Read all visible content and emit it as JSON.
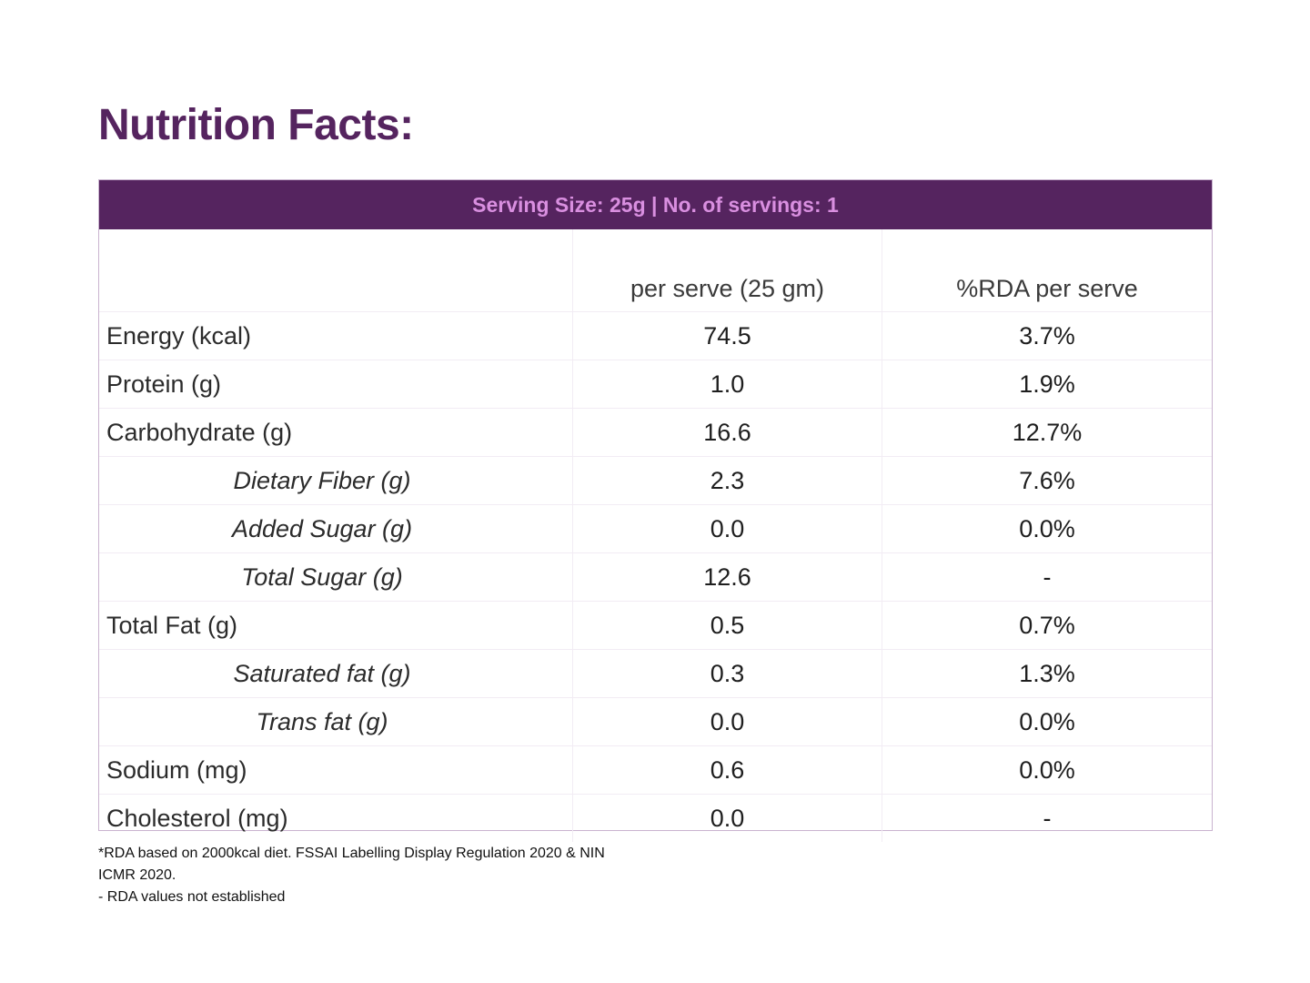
{
  "title": "Nutrition Facts:",
  "serving": "Serving Size: 25g | No. of servings: 1",
  "columns": {
    "nutrient": "",
    "per_serve": "per serve (25 gm)",
    "rda": "%RDA per serve"
  },
  "rows": [
    {
      "label": "Energy (kcal)",
      "per_serve": "74.5",
      "rda": "3.7%",
      "sub": false
    },
    {
      "label": "Protein (g)",
      "per_serve": "1.0",
      "rda": "1.9%",
      "sub": false
    },
    {
      "label": "Carbohydrate (g)",
      "per_serve": "16.6",
      "rda": "12.7%",
      "sub": false
    },
    {
      "label": "Dietary Fiber (g)",
      "per_serve": "2.3",
      "rda": "7.6%",
      "sub": true
    },
    {
      "label": "Added Sugar (g)",
      "per_serve": "0.0",
      "rda": "0.0%",
      "sub": true
    },
    {
      "label": "Total Sugar (g)",
      "per_serve": "12.6",
      "rda": "-",
      "sub": true
    },
    {
      "label": "Total Fat (g)",
      "per_serve": "0.5",
      "rda": "0.7%",
      "sub": false
    },
    {
      "label": "Saturated fat (g)",
      "per_serve": "0.3",
      "rda": "1.3%",
      "sub": true
    },
    {
      "label": "Trans fat (g)",
      "per_serve": "0.0",
      "rda": "0.0%",
      "sub": true
    },
    {
      "label": "Sodium (mg)",
      "per_serve": "0.6",
      "rda": "0.0%",
      "sub": false
    },
    {
      "label": "Cholesterol (mg)",
      "per_serve": "0.0",
      "rda": "-",
      "sub": false
    }
  ],
  "footnotes": [
    "*RDA based on 2000kcal diet. FSSAI Labelling Display Regulation 2020 & NIN",
    "ICMR 2020.",
    "- RDA values not established"
  ],
  "colors": {
    "brand": "#55245f",
    "serving_text": "#d98fe0",
    "border": "#c9b3cf"
  }
}
